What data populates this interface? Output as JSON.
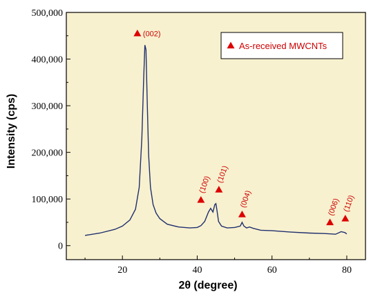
{
  "chart_data": {
    "type": "line",
    "xlabel": "2θ (degree)",
    "ylabel": "Intensity (cps)",
    "xlim": [
      5,
      85
    ],
    "ylim": [
      -30000,
      500000
    ],
    "x_ticks": [
      20,
      40,
      60,
      80
    ],
    "x_tick_labels": [
      "20",
      "40",
      "60",
      "80"
    ],
    "y_ticks": [
      0,
      100000,
      200000,
      300000,
      400000,
      500000
    ],
    "y_tick_labels": [
      "0",
      "100,000",
      "200,000",
      "300,000",
      "400,000",
      "500,000"
    ],
    "grid": false,
    "background_color": "#f8f1cf",
    "line_color": "#1f2f6e",
    "marker_color": "#dd0000",
    "series": [
      {
        "name": "As-received MWCNTs",
        "x": [
          10,
          14,
          18,
          20,
          22,
          23.5,
          24.5,
          25.2,
          25.7,
          26.0,
          26.3,
          26.6,
          27.0,
          27.5,
          28.2,
          29,
          30,
          32,
          35,
          38,
          40,
          41,
          42,
          43,
          43.6,
          44.2,
          44.7,
          45.0,
          45.3,
          45.7,
          46.5,
          48,
          50,
          51.5,
          52.0,
          52.5,
          53.2,
          54.0,
          55,
          57,
          60,
          65,
          70,
          74,
          76,
          77,
          78.5,
          79.5,
          80
        ],
        "y": [
          22000,
          27000,
          35000,
          42000,
          55000,
          78000,
          125000,
          230000,
          360000,
          430000,
          420000,
          320000,
          195000,
          125000,
          88000,
          70000,
          58000,
          46000,
          40000,
          38000,
          39000,
          43000,
          52000,
          72000,
          80000,
          72000,
          88000,
          90000,
          75000,
          52000,
          42000,
          38000,
          39000,
          42000,
          50000,
          42000,
          38000,
          40000,
          37000,
          33000,
          32000,
          29000,
          27000,
          26000,
          25000,
          24500,
          30000,
          28000,
          25000
        ]
      }
    ],
    "annotations": [
      {
        "label": "(002)",
        "x": 24.0,
        "y": 455000,
        "orientation": "horizontal"
      },
      {
        "label": "(100)",
        "x": 41.0,
        "y": 98000,
        "orientation": "vertical"
      },
      {
        "label": "(101)",
        "x": 45.8,
        "y": 120000,
        "orientation": "vertical"
      },
      {
        "label": "(004)",
        "x": 52.0,
        "y": 67000,
        "orientation": "vertical"
      },
      {
        "label": "(006)",
        "x": 75.5,
        "y": 50000,
        "orientation": "vertical"
      },
      {
        "label": "(110)",
        "x": 79.6,
        "y": 58000,
        "orientation": "vertical"
      }
    ],
    "legend": {
      "text": "As-received MWCNTs",
      "position": "top-right"
    }
  }
}
